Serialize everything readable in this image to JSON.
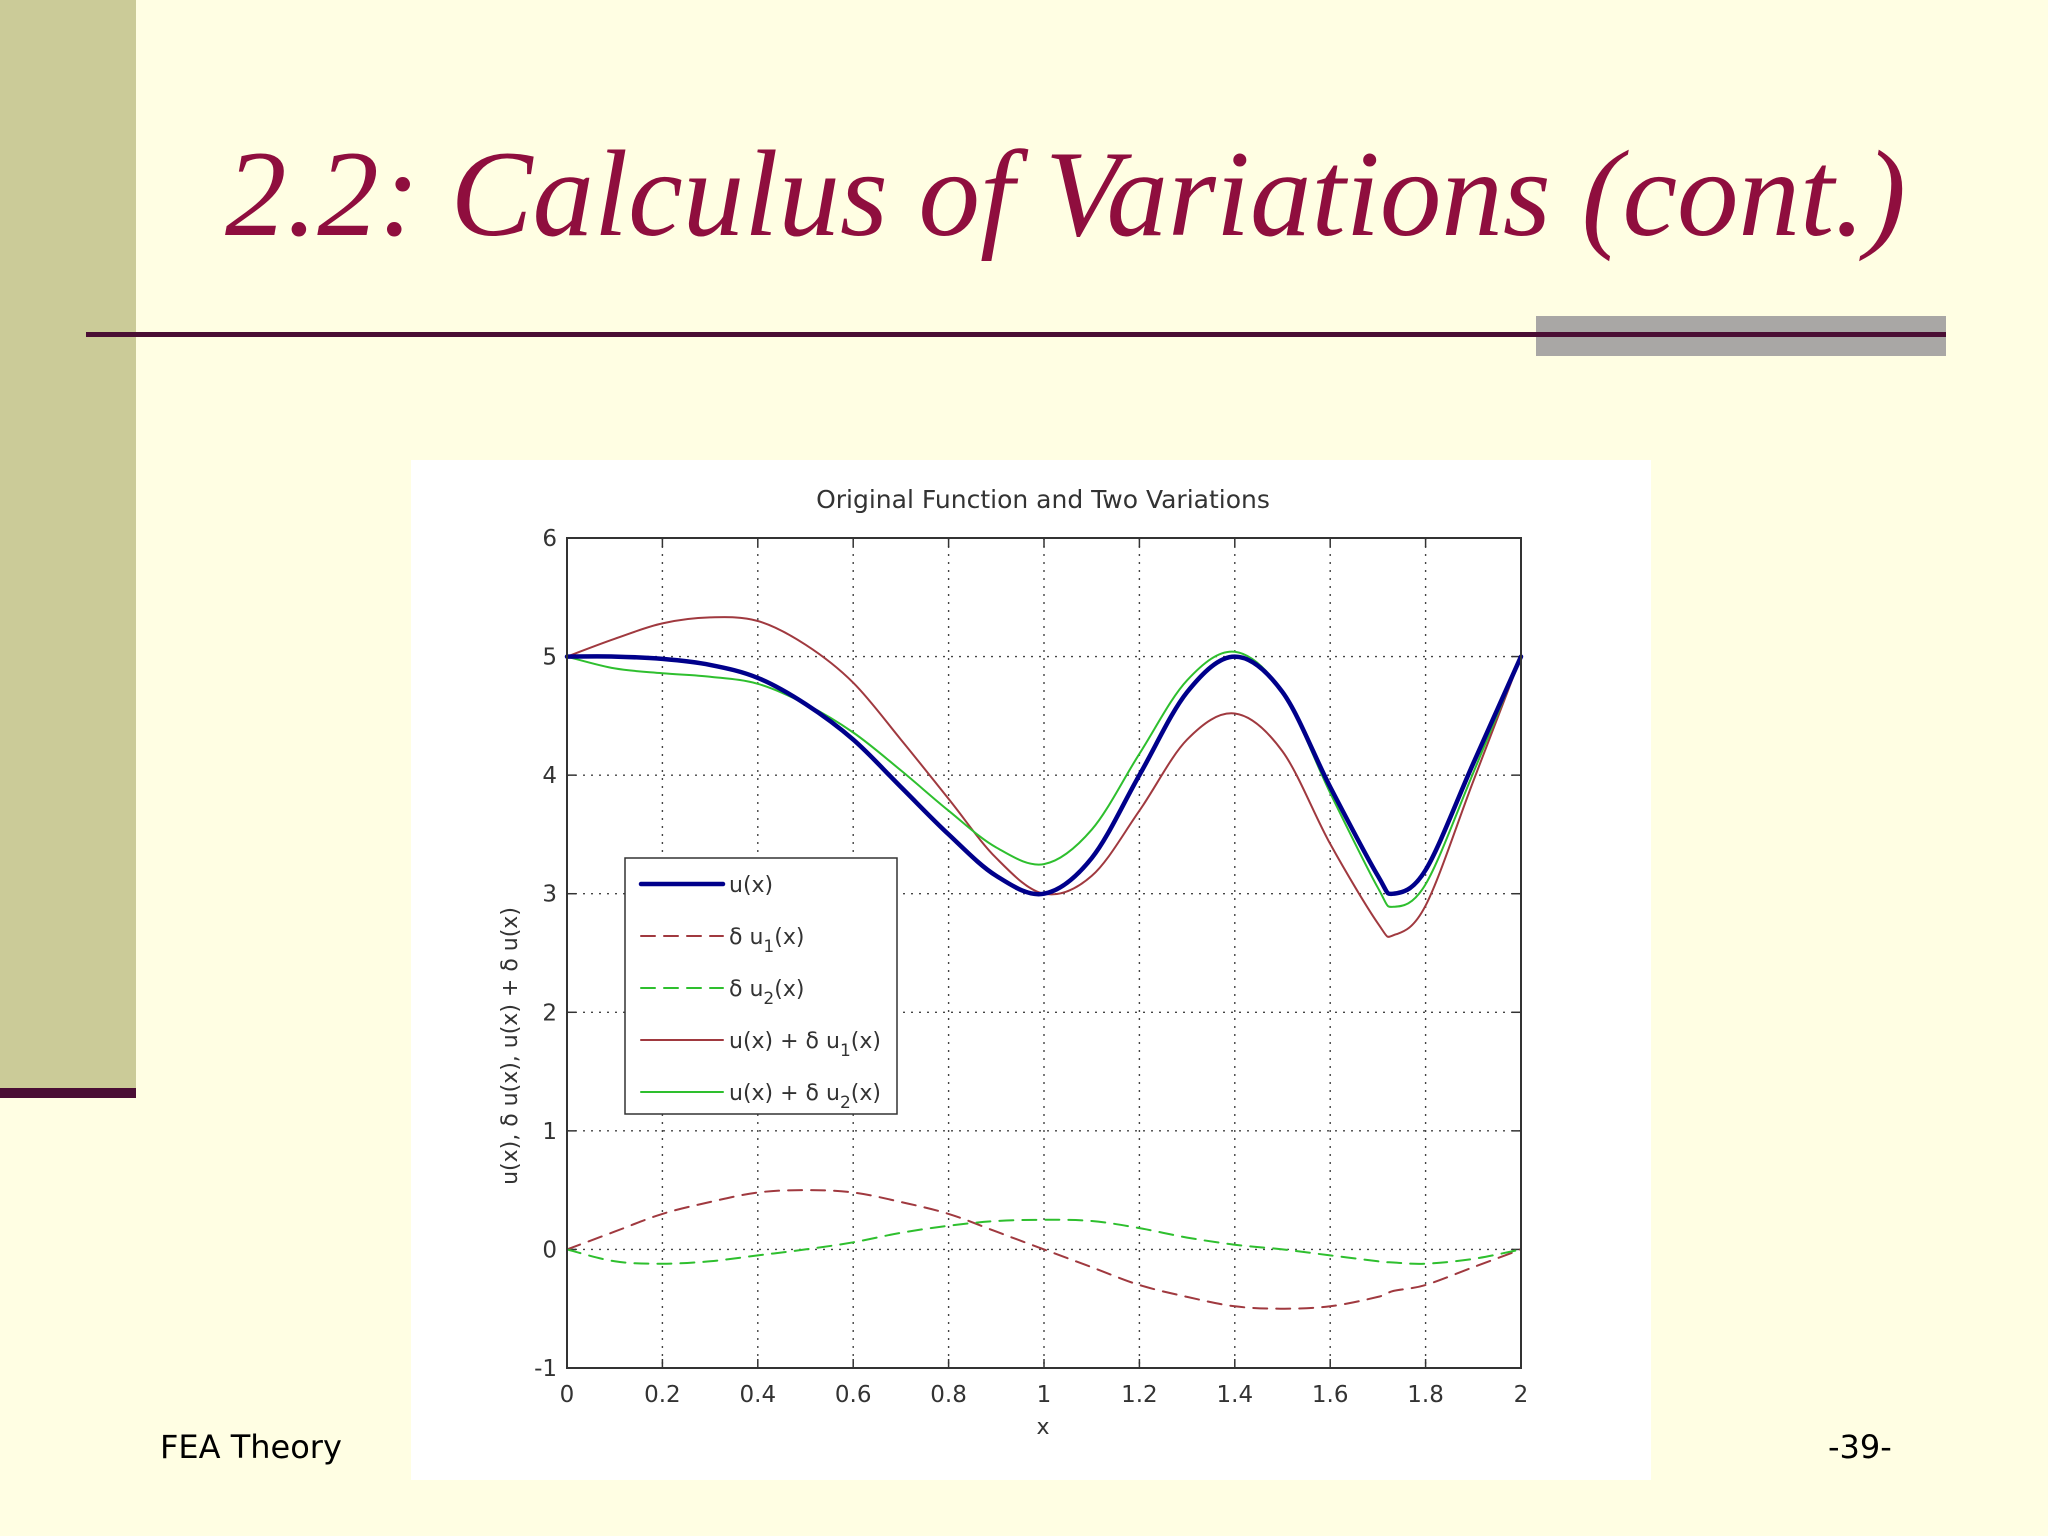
{
  "slide": {
    "title": "2.2: Calculus of Variations (cont.)",
    "footer_left": "FEA Theory",
    "footer_right": "-39-"
  },
  "colors": {
    "background": "#FFFEE3",
    "sidebar": "#CBCB98",
    "title": "#8F0E3E",
    "rule": "#4A0E34",
    "rule_accent": "#A9A7A5"
  },
  "chart_data": {
    "type": "line",
    "title": "Original Function and Two Variations",
    "xlabel": "x",
    "ylabel": "u(x), δ u(x), u(x) + δ u(x)",
    "xlim": [
      0,
      2
    ],
    "ylim": [
      -1,
      6
    ],
    "xticks": [
      "0",
      "0.2",
      "0.4",
      "0.6",
      "0.8",
      "1",
      "1.2",
      "1.4",
      "1.6",
      "1.8",
      "2"
    ],
    "yticks": [
      "-1",
      "0",
      "1",
      "2",
      "3",
      "4",
      "5",
      "6"
    ],
    "grid": true,
    "legend_position": "middle-left",
    "x": [
      0,
      0.1,
      0.2,
      0.3,
      0.4,
      0.5,
      0.6,
      0.7,
      0.8,
      0.9,
      1.0,
      1.1,
      1.2,
      1.3,
      1.4,
      1.5,
      1.6,
      1.7,
      1.733,
      1.8,
      1.9,
      2.0
    ],
    "series": [
      {
        "name": "u(x)",
        "color": "#00008B",
        "style": "solid-thick",
        "legend": {
          "base": "u(x)",
          "sub": "",
          "tail": ""
        },
        "values": [
          5.0,
          5.0,
          4.98,
          4.93,
          4.82,
          4.6,
          4.3,
          3.9,
          3.5,
          3.15,
          3.0,
          3.3,
          4.0,
          4.7,
          5.0,
          4.7,
          3.9,
          3.15,
          3.0,
          3.2,
          4.1,
          5.0
        ]
      },
      {
        "name": "δ u1(x)",
        "color": "#A0393F",
        "style": "dashed",
        "legend": {
          "base": "δ u",
          "sub": "1",
          "tail": "(x)"
        },
        "values": [
          0.0,
          0.15,
          0.3,
          0.4,
          0.48,
          0.5,
          0.48,
          0.4,
          0.3,
          0.15,
          0.0,
          -0.15,
          -0.3,
          -0.4,
          -0.48,
          -0.5,
          -0.48,
          -0.4,
          -0.35,
          -0.3,
          -0.15,
          0.0
        ]
      },
      {
        "name": "δ u2(x)",
        "color": "#2EBF2E",
        "style": "dashed",
        "legend": {
          "base": "δ u",
          "sub": "2",
          "tail": "(x)"
        },
        "values": [
          0.0,
          -0.1,
          -0.12,
          -0.1,
          -0.05,
          0.0,
          0.06,
          0.14,
          0.2,
          0.24,
          0.25,
          0.24,
          0.18,
          0.1,
          0.04,
          0.0,
          -0.05,
          -0.1,
          -0.11,
          -0.12,
          -0.08,
          0.0
        ]
      },
      {
        "name": "u(x) + δ u1(x)",
        "color": "#A0393F",
        "style": "solid",
        "legend": {
          "base": "u(x) + δ u",
          "sub": "1",
          "tail": "(x)"
        },
        "values": [
          5.0,
          5.15,
          5.28,
          5.33,
          5.3,
          5.1,
          4.78,
          4.3,
          3.8,
          3.3,
          3.0,
          3.15,
          3.7,
          4.3,
          4.52,
          4.2,
          3.42,
          2.75,
          2.65,
          2.9,
          3.95,
          5.0
        ]
      },
      {
        "name": "u(x) + δ u2(x)",
        "color": "#2EBF2E",
        "style": "solid",
        "legend": {
          "base": "u(x) + δ u",
          "sub": "2",
          "tail": "(x)"
        },
        "values": [
          5.0,
          4.9,
          4.86,
          4.83,
          4.77,
          4.6,
          4.36,
          4.04,
          3.7,
          3.39,
          3.25,
          3.54,
          4.18,
          4.8,
          5.04,
          4.7,
          3.85,
          3.05,
          2.89,
          3.08,
          4.02,
          5.0
        ]
      }
    ]
  }
}
